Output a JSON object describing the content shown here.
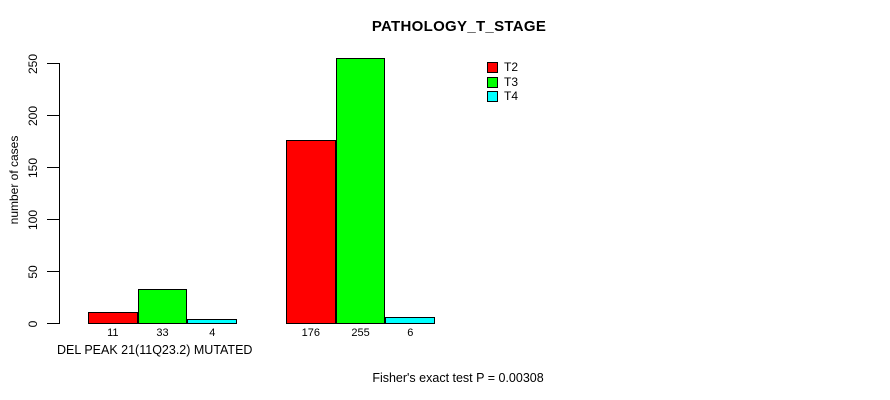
{
  "chart_data": {
    "type": "bar",
    "title": "PATHOLOGY_T_STAGE",
    "ylabel": "number of cases",
    "xlabel": "DEL PEAK 21(11Q23.2) MUTATED",
    "footnote": "Fisher's exact test P = 0.00308",
    "categories": [
      "",
      ""
    ],
    "series": [
      {
        "name": "T2",
        "color": "#ff0000",
        "values": [
          11,
          176
        ]
      },
      {
        "name": "T3",
        "color": "#00ff00",
        "values": [
          33,
          255
        ]
      },
      {
        "name": "T4",
        "color": "#00ffff",
        "values": [
          4,
          6
        ]
      }
    ],
    "ylim": [
      0,
      250
    ],
    "yticks": [
      0,
      50,
      100,
      150,
      200,
      250
    ],
    "grid": false,
    "bar_value_labels_shown": true,
    "legend_position": "top-right",
    "colors": {
      "background": "#ffffff",
      "axis": "#000000",
      "text": "#000000",
      "bar_border": "#000000"
    }
  }
}
